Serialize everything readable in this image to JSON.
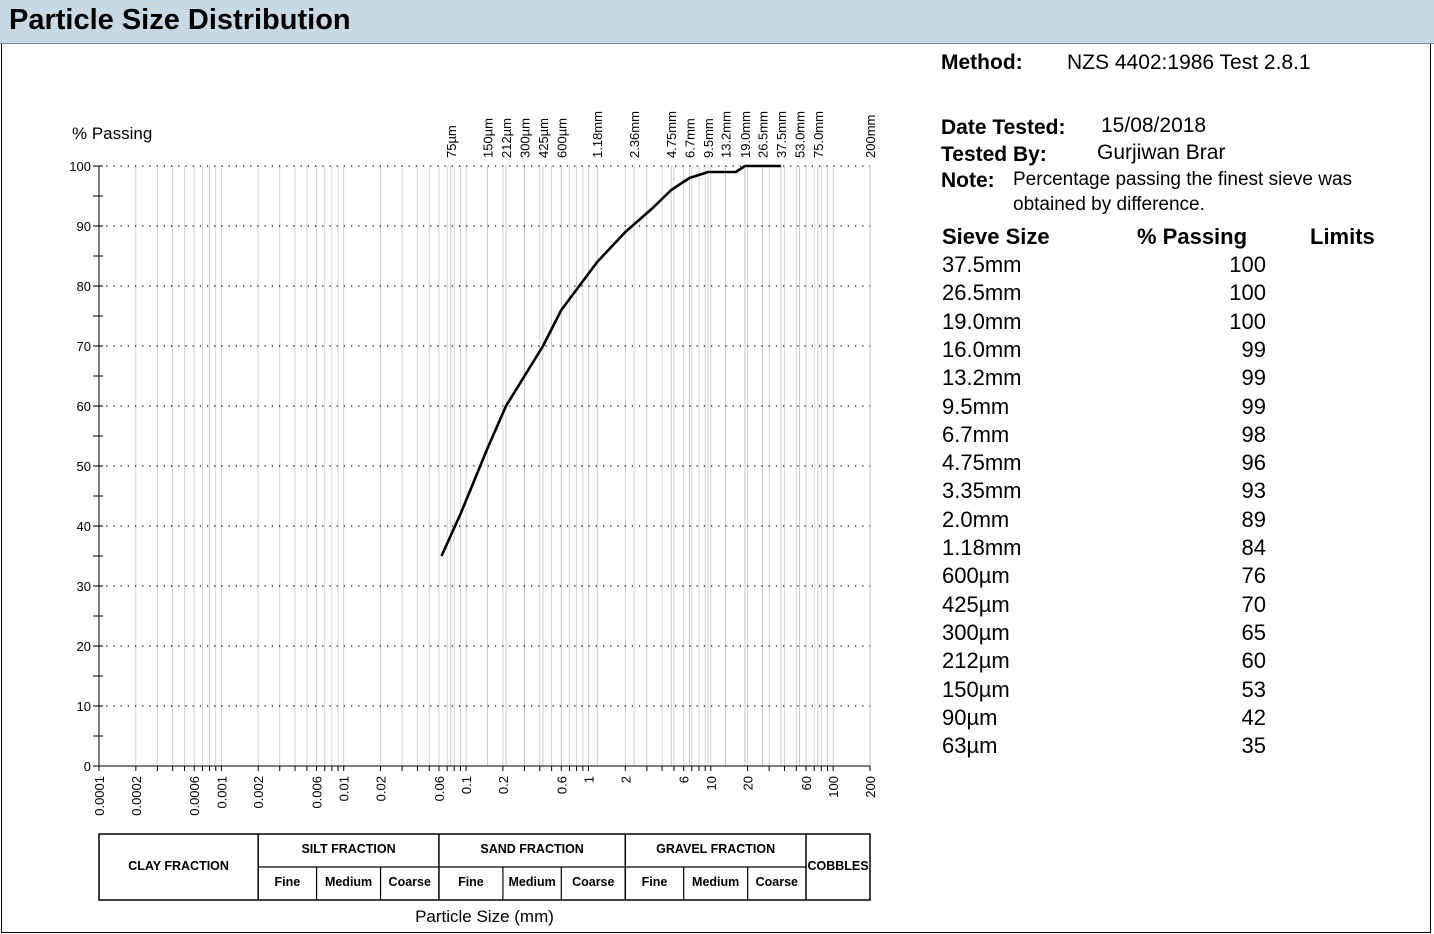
{
  "header": {
    "title": "Particle Size Distribution"
  },
  "info": {
    "method_label": "Method:",
    "method_value": "NZS 4402:1986 Test 2.8.1",
    "date_label": "Date Tested:",
    "date_value": "15/08/2018",
    "tested_by_label": "Tested By:",
    "tested_by_value": "Gurjiwan Brar",
    "note_label": "Note:",
    "note_value": "Percentage passing the finest sieve was obtained by difference."
  },
  "table": {
    "headers": [
      "Sieve Size",
      "% Passing",
      "Limits"
    ],
    "rows": [
      {
        "sieve": "37.5mm",
        "passing": "100"
      },
      {
        "sieve": "26.5mm",
        "passing": "100"
      },
      {
        "sieve": "19.0mm",
        "passing": "100"
      },
      {
        "sieve": "16.0mm",
        "passing": "99"
      },
      {
        "sieve": "13.2mm",
        "passing": "99"
      },
      {
        "sieve": "9.5mm",
        "passing": "99"
      },
      {
        "sieve": "6.7mm",
        "passing": "98"
      },
      {
        "sieve": "4.75mm",
        "passing": "96"
      },
      {
        "sieve": "3.35mm",
        "passing": "93"
      },
      {
        "sieve": "2.0mm",
        "passing": "89"
      },
      {
        "sieve": "1.18mm",
        "passing": "84"
      },
      {
        "sieve": "600µm",
        "passing": "76"
      },
      {
        "sieve": "425µm",
        "passing": "70"
      },
      {
        "sieve": "300µm",
        "passing": "65"
      },
      {
        "sieve": "212µm",
        "passing": "60"
      },
      {
        "sieve": "150µm",
        "passing": "53"
      },
      {
        "sieve": "90µm",
        "passing": "42"
      },
      {
        "sieve": "63µm",
        "passing": "35"
      }
    ]
  },
  "chart_data": {
    "type": "line",
    "ylabel": "% Passing",
    "xlabel": "Particle Size (mm)",
    "x_scale": "log",
    "xlim": [
      0.0001,
      200
    ],
    "ylim": [
      0,
      100
    ],
    "y_ticks": [
      "0",
      "10",
      "20",
      "30",
      "40",
      "50",
      "60",
      "70",
      "80",
      "90",
      "100"
    ],
    "x_ticks": [
      {
        "v": 0.0001,
        "label": "0.0001"
      },
      {
        "v": 0.0002,
        "label": "0.0002"
      },
      {
        "v": 0.0006,
        "label": "0.0006"
      },
      {
        "v": 0.001,
        "label": "0.001"
      },
      {
        "v": 0.002,
        "label": "0.002"
      },
      {
        "v": 0.006,
        "label": "0.006"
      },
      {
        "v": 0.01,
        "label": "0.01"
      },
      {
        "v": 0.02,
        "label": "0.02"
      },
      {
        "v": 0.06,
        "label": "0.06"
      },
      {
        "v": 0.1,
        "label": "0.1"
      },
      {
        "v": 0.2,
        "label": "0.2"
      },
      {
        "v": 0.6,
        "label": "0.6"
      },
      {
        "v": 1,
        "label": "1"
      },
      {
        "v": 2,
        "label": "2"
      },
      {
        "v": 6,
        "label": "6"
      },
      {
        "v": 10,
        "label": "10"
      },
      {
        "v": 20,
        "label": "20"
      },
      {
        "v": 60,
        "label": "60"
      },
      {
        "v": 100,
        "label": "100"
      },
      {
        "v": 200,
        "label": "200"
      }
    ],
    "sieve_labels": [
      {
        "v": 0.075,
        "label": "75µm"
      },
      {
        "v": 0.15,
        "label": "150µm"
      },
      {
        "v": 0.212,
        "label": "212µm"
      },
      {
        "v": 0.3,
        "label": "300µm"
      },
      {
        "v": 0.425,
        "label": "425µm"
      },
      {
        "v": 0.6,
        "label": "600µm"
      },
      {
        "v": 1.18,
        "label": "1.18mm"
      },
      {
        "v": 2.36,
        "label": "2.36mm"
      },
      {
        "v": 4.75,
        "label": "4.75mm"
      },
      {
        "v": 6.7,
        "label": "6.7mm"
      },
      {
        "v": 9.5,
        "label": "9.5mm"
      },
      {
        "v": 13.2,
        "label": "13.2mm"
      },
      {
        "v": 19.0,
        "label": "19.0mm"
      },
      {
        "v": 26.5,
        "label": "26.5mm"
      },
      {
        "v": 37.5,
        "label": "37.5mm"
      },
      {
        "v": 53.0,
        "label": "53.0mm"
      },
      {
        "v": 75.0,
        "label": "75.0mm"
      },
      {
        "v": 200,
        "label": "200mm"
      }
    ],
    "series": [
      {
        "x": [
          0.063,
          0.09,
          0.15,
          0.212,
          0.3,
          0.425,
          0.6,
          1.18,
          2.0,
          3.35,
          4.75,
          6.7,
          9.5,
          13.2,
          16.0,
          19.0,
          26.5,
          37.5
        ],
        "y": [
          35,
          42,
          53,
          60,
          65,
          70,
          76,
          84,
          89,
          93,
          96,
          98,
          99,
          99,
          99,
          100,
          100,
          100
        ]
      }
    ],
    "grid": true,
    "fractions": {
      "clay": "CLAY FRACTION",
      "silt": "SILT FRACTION",
      "sand": "SAND FRACTION",
      "gravel": "GRAVEL FRACTION",
      "cobbles": "COBBLES",
      "fine": "Fine",
      "medium": "Medium",
      "coarse": "Coarse",
      "boundaries": [
        0.0001,
        0.002,
        0.06,
        2,
        60,
        200
      ],
      "sub_boundaries": [
        0.006,
        0.02,
        0.2,
        0.6,
        6,
        20
      ]
    }
  }
}
